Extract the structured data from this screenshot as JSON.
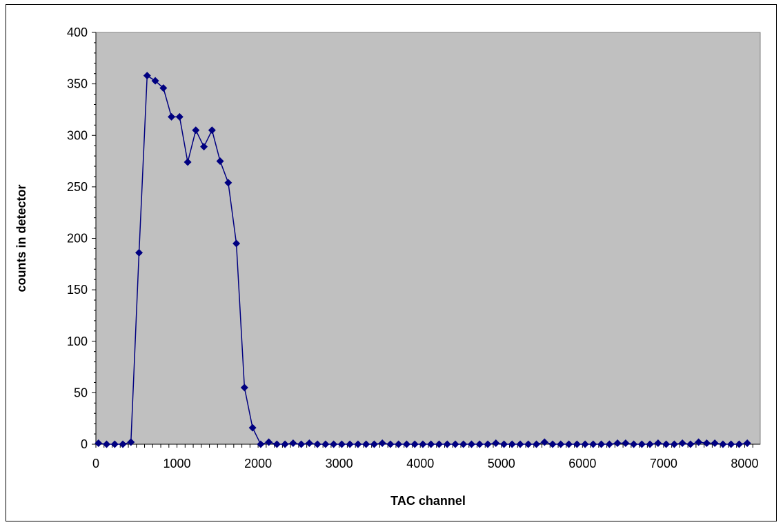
{
  "chart_data": {
    "type": "line",
    "title": "",
    "xlabel": "TAC channel",
    "ylabel": "counts in detector",
    "xlim": [
      0,
      8192
    ],
    "ylim": [
      0,
      400
    ],
    "x_ticks": [
      0,
      1000,
      2000,
      3000,
      4000,
      5000,
      6000,
      7000,
      8000
    ],
    "y_ticks": [
      0,
      50,
      100,
      150,
      200,
      250,
      300,
      350,
      400
    ],
    "grid": false,
    "legend": "none",
    "colors": {
      "plot_background": "#c0c0c0",
      "series": "#000080"
    },
    "series": [
      {
        "marker": "diamond",
        "x": [
          32,
          132,
          232,
          332,
          432,
          532,
          632,
          732,
          832,
          932,
          1032,
          1132,
          1232,
          1332,
          1432,
          1532,
          1632,
          1732,
          1832,
          1932,
          2032,
          2132,
          2232,
          2332,
          2432,
          2532,
          2632,
          2732,
          2832,
          2932,
          3032,
          3132,
          3232,
          3332,
          3432,
          3532,
          3632,
          3732,
          3832,
          3932,
          4032,
          4132,
          4232,
          4332,
          4432,
          4532,
          4632,
          4732,
          4832,
          4932,
          5032,
          5132,
          5232,
          5332,
          5432,
          5532,
          5632,
          5732,
          5832,
          5932,
          6032,
          6132,
          6232,
          6332,
          6432,
          6532,
          6632,
          6732,
          6832,
          6932,
          7032,
          7132,
          7232,
          7332,
          7432,
          7532,
          7632,
          7732,
          7832,
          7932,
          8032
        ],
        "y": [
          1,
          0,
          0,
          0,
          2,
          186,
          358,
          353,
          346,
          318,
          318,
          274,
          305,
          289,
          305,
          275,
          254,
          195,
          55,
          16,
          0,
          2,
          0,
          0,
          1,
          0,
          1,
          0,
          0,
          0,
          0,
          0,
          0,
          0,
          0,
          1,
          0,
          0,
          0,
          0,
          0,
          0,
          0,
          0,
          0,
          0,
          0,
          0,
          0,
          1,
          0,
          0,
          0,
          0,
          0,
          2,
          0,
          0,
          0,
          0,
          0,
          0,
          0,
          0,
          1,
          1,
          0,
          0,
          0,
          1,
          0,
          0,
          1,
          0,
          2,
          1,
          1,
          0,
          0,
          0,
          1
        ]
      }
    ]
  }
}
